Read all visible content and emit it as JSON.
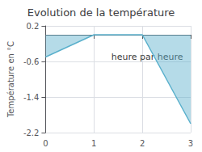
{
  "chart_data": {
    "type": "area",
    "title": "Evolution de la température",
    "ylabel": "Température en °C",
    "x": [
      0,
      1,
      2,
      3
    ],
    "values": [
      -0.5,
      0.0,
      0.0,
      -2.0
    ],
    "color": "#5ab0cc",
    "xlim": [
      0,
      3
    ],
    "xticks": [
      0,
      1,
      2,
      3
    ],
    "ylim": [
      -2.2,
      0.2
    ],
    "yticks": [
      0.2,
      -0.6,
      -1.4,
      -2.2
    ],
    "grid": true,
    "annotations": [
      {
        "text": "heure par heure",
        "x": 2.1,
        "y": -0.5
      }
    ]
  }
}
